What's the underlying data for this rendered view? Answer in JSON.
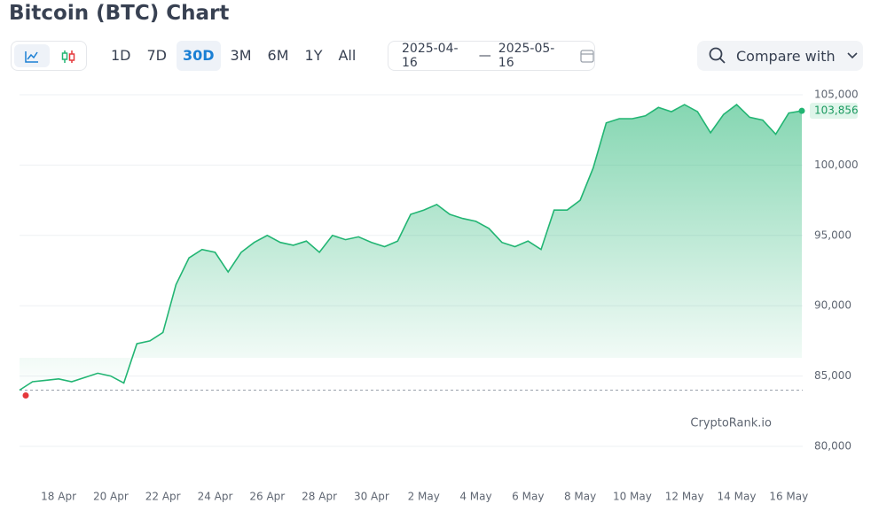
{
  "toolbar": {
    "ranges": [
      "1D",
      "7D",
      "30D",
      "3M",
      "6M",
      "1Y",
      "All"
    ],
    "selected_range": 2,
    "date_from": "2025-04-16",
    "date_separator": "—",
    "date_to": "2025-05-16",
    "compare": "Compare with"
  },
  "chart_data": {
    "type": "line",
    "title": "Bitcoin (BTC) Chart",
    "watermark": "CryptoRank.io",
    "color": "#22b573",
    "start_color": "#e5383b",
    "categories": [
      null,
      null,
      null,
      "18 Apr",
      null,
      null,
      null,
      "20 Apr",
      null,
      null,
      null,
      "22 Apr",
      null,
      null,
      null,
      "24 Apr",
      null,
      null,
      null,
      "26 Apr",
      null,
      null,
      null,
      "28 Apr",
      null,
      null,
      null,
      "30 Apr",
      null,
      null,
      null,
      "2 May",
      null,
      null,
      null,
      "4 May",
      null,
      null,
      null,
      "6 May",
      null,
      null,
      null,
      "8 May",
      null,
      null,
      null,
      "10 May",
      null,
      null,
      null,
      "12 May",
      null,
      null,
      null,
      "14 May",
      null,
      null,
      null,
      "16 May",
      null
    ],
    "values": [
      84000,
      84600,
      84700,
      84800,
      84600,
      84900,
      85200,
      85000,
      84500,
      87300,
      87500,
      88100,
      91500,
      93400,
      94000,
      93800,
      92400,
      93800,
      94500,
      95000,
      94500,
      94300,
      94600,
      93800,
      95000,
      94700,
      94900,
      94500,
      94200,
      94600,
      96500,
      96800,
      97200,
      96500,
      96200,
      96000,
      95500,
      94500,
      94200,
      94600,
      94000,
      96800,
      96800,
      97500,
      99800,
      103000,
      103300,
      103300,
      103500,
      104100,
      103800,
      104300,
      103800,
      102300,
      103600,
      104300,
      103400,
      103200,
      102200,
      103700,
      103856
    ],
    "current_price": {
      "value": 103856,
      "label": "103,856"
    },
    "ylim": [
      80000,
      105000
    ],
    "yticks": [
      {
        "value": 80000,
        "label": "80,000"
      },
      {
        "value": 85000,
        "label": "85,000"
      },
      {
        "value": 90000,
        "label": "90,000"
      },
      {
        "value": 95000,
        "label": "95,000"
      },
      {
        "value": 100000,
        "label": "100,000"
      },
      {
        "value": 105000,
        "label": "105,000"
      }
    ],
    "grid": true
  }
}
